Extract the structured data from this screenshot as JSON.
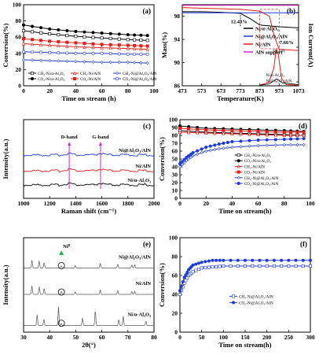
{
  "chart_data": [
    {
      "panel": "(a)",
      "type": "line",
      "xlabel": "Time on stream (h)",
      "ylabel": "Conversion(%)",
      "xlim": [
        0,
        100
      ],
      "ylim": [
        0,
        100
      ],
      "xticks": [
        "0",
        "20",
        "40",
        "60",
        "80",
        "100"
      ],
      "yticks": [
        "0",
        "20",
        "40",
        "60",
        "80",
        "100"
      ],
      "legend": "bottom",
      "series": [
        {
          "name": "CH4-Ni/α-Al2O3",
          "color": "#000000",
          "marker": "square-open",
          "x": [
            0,
            20,
            40,
            60,
            80,
            95
          ],
          "values": [
            68,
            64,
            61,
            59,
            57,
            56
          ]
        },
        {
          "name": "CO2-Ni/α-Al2O3",
          "color": "#000000",
          "marker": "circle",
          "x": [
            0,
            20,
            40,
            60,
            80,
            95
          ],
          "values": [
            75,
            70,
            67,
            65,
            63,
            62
          ]
        },
        {
          "name": "CH4-Ni/AlN",
          "color": "#e0201b",
          "marker": "triangle-open",
          "x": [
            0,
            20,
            40,
            60,
            80,
            95
          ],
          "values": [
            52,
            50,
            48,
            47,
            46,
            45
          ]
        },
        {
          "name": "CO2-Ni/AlN",
          "color": "#e0201b",
          "marker": "square",
          "x": [
            0,
            20,
            40,
            60,
            80,
            95
          ],
          "values": [
            58,
            55,
            53,
            51,
            50,
            49
          ]
        },
        {
          "name": "CH4-Ni@Al2O3/AlN",
          "color": "#1f3bd6",
          "marker": "diamond-open",
          "x": [
            0,
            20,
            40,
            60,
            80,
            95
          ],
          "values": [
            32,
            31,
            30,
            29,
            29,
            28
          ]
        },
        {
          "name": "CO2-Ni@Al2O3/AlN",
          "color": "#1f3bd6",
          "marker": "circle-open",
          "x": [
            0,
            20,
            40,
            60,
            80,
            95
          ],
          "values": [
            42,
            41,
            40,
            40,
            39,
            39
          ]
        }
      ]
    },
    {
      "panel": "(b)",
      "type": "line",
      "xlabel": "Temperature(K)",
      "ylabel": "Mass(%)",
      "ylabel_right": "Ion Current(A)",
      "xlim": [
        473,
        1073
      ],
      "ylim": [
        86,
        100
      ],
      "xticks": [
        "473",
        "573",
        "673",
        "773",
        "873",
        "973",
        "1073"
      ],
      "yticks": [
        "86",
        "90",
        "94",
        "98"
      ],
      "annotations": [
        "12.43%",
        "7.66%",
        "Ni/AlN",
        "Ni/α-Al2O3",
        "Ni@Al2O3/AlN"
      ],
      "series": [
        {
          "name": "Ni/α-Al2O3",
          "color": "#000000",
          "x": [
            473,
            573,
            673,
            773,
            823,
            873,
            973,
            1073
          ],
          "values": [
            98.8,
            98.8,
            98.7,
            98.5,
            97.6,
            96.5,
            96.2,
            96.0
          ]
        },
        {
          "name": "Ni@Al2O3/AlN",
          "color": "#1f3bd6",
          "x": [
            473,
            573,
            673,
            773,
            873,
            973,
            1073
          ],
          "values": [
            98.6,
            98.6,
            98.6,
            98.6,
            98.6,
            98.6,
            98.6
          ]
        },
        {
          "name": "Ni/AlN",
          "color": "#e0201b",
          "x": [
            473,
            573,
            673,
            773,
            873,
            923,
            948,
            973,
            1073
          ],
          "values": [
            99.5,
            99.4,
            99.3,
            99.2,
            98.9,
            98.0,
            94.5,
            92.3,
            92.1
          ]
        },
        {
          "name": "AlN support",
          "color": "#e020c8",
          "x": [
            473,
            573,
            673,
            773,
            873,
            973,
            1073
          ],
          "values": [
            99.9,
            99.9,
            99.9,
            99.9,
            99.9,
            99.9,
            99.9
          ]
        }
      ]
    },
    {
      "panel": "(c)",
      "type": "line",
      "xlabel": "Raman shift (cm-1)",
      "ylabel": "Intensity(a.u.)",
      "xlim": [
        1000,
        2000
      ],
      "xticks": [
        "1000",
        "1200",
        "1400",
        "1600",
        "1800",
        "2000"
      ],
      "annotations": [
        "D-band",
        "G-band"
      ],
      "series": [
        {
          "name": "Ni@Al2O3/AlN",
          "color": "#1f3bd6"
        },
        {
          "name": "Ni/AlN",
          "color": "#e0201b"
        },
        {
          "name": "Ni/α-Al2O3",
          "color": "#000000"
        }
      ]
    },
    {
      "panel": "(d)",
      "type": "line",
      "xlabel": "Time on stream(h)",
      "ylabel": "Conversion(%)",
      "xlim": [
        0,
        100
      ],
      "ylim": [
        0,
        100
      ],
      "xticks": [
        "0",
        "20",
        "40",
        "60",
        "80",
        "100"
      ],
      "yticks": [
        "0",
        "10",
        "20",
        "30",
        "40",
        "50",
        "60",
        "70",
        "80",
        "90",
        "100"
      ],
      "series": [
        {
          "name": "CH4-Ni/α-Al2O3",
          "color": "#000000",
          "marker": "square-open",
          "x": [
            0,
            20,
            40,
            60,
            80,
            95
          ],
          "values": [
            86,
            84,
            83,
            82,
            81,
            80
          ]
        },
        {
          "name": "CO2-Ni/α-Al2O3",
          "color": "#000000",
          "marker": "circle",
          "x": [
            0,
            20,
            40,
            60,
            80,
            95
          ],
          "values": [
            92,
            89,
            88,
            87,
            86,
            85
          ]
        },
        {
          "name": "CH4-Ni/AlN",
          "color": "#e0201b",
          "marker": "triangle-open",
          "x": [
            0,
            20,
            40,
            60,
            80,
            95
          ],
          "values": [
            84,
            83,
            82,
            81,
            80,
            80
          ]
        },
        {
          "name": "CO2-Ni/AlN",
          "color": "#e0201b",
          "marker": "square",
          "x": [
            0,
            20,
            40,
            60,
            80,
            95
          ],
          "values": [
            89,
            87,
            86,
            85,
            84,
            84
          ]
        },
        {
          "name": "CH4-Ni@Al2O3/AlN",
          "color": "#1f3bd6",
          "marker": "diamond-open",
          "x": [
            0,
            5,
            10,
            20,
            30,
            40,
            60,
            80,
            95
          ],
          "values": [
            40,
            48,
            54,
            60,
            63,
            65,
            67,
            68,
            68
          ]
        },
        {
          "name": "CO2-Ni@Al2O3/AlN",
          "color": "#1f3bd6",
          "marker": "circle",
          "x": [
            0,
            5,
            10,
            20,
            30,
            40,
            60,
            80,
            95
          ],
          "values": [
            44,
            52,
            58,
            65,
            69,
            72,
            74,
            75,
            76
          ]
        }
      ]
    },
    {
      "panel": "(e)",
      "type": "line",
      "xlabel": "2θ(°)",
      "ylabel": "Intensity(a.u.)",
      "xlim": [
        30,
        80
      ],
      "xticks": [
        "30",
        "40",
        "50",
        "60",
        "70",
        "80"
      ],
      "annotations": [
        "Ni0"
      ],
      "series": [
        {
          "name": "Ni@Al2O3/AlN",
          "color": "#555555"
        },
        {
          "name": "Ni/AlN",
          "color": "#555555"
        },
        {
          "name": "Ni/α-Al2O3",
          "color": "#555555"
        }
      ]
    },
    {
      "panel": "(f)",
      "type": "line",
      "xlabel": "Time on stream(h)",
      "ylabel": "Conversion(%)",
      "xlim": [
        0,
        300
      ],
      "ylim": [
        0,
        100
      ],
      "xticks": [
        "0",
        "50",
        "100",
        "150",
        "200",
        "250",
        "300"
      ],
      "yticks": [
        "0",
        "20",
        "40",
        "60",
        "80",
        "100"
      ],
      "series": [
        {
          "name": "CH4-Ni@Al2O3/AlN",
          "color": "#1f3bd6",
          "marker": "square-open",
          "x": [
            0,
            10,
            20,
            30,
            50,
            75,
            100,
            150,
            200,
            250,
            300
          ],
          "values": [
            40,
            52,
            60,
            64,
            68,
            69,
            70,
            70,
            70,
            70,
            70
          ]
        },
        {
          "name": "CO2-Ni@Al2O3/AlN",
          "color": "#1f3bd6",
          "marker": "circle",
          "x": [
            0,
            10,
            20,
            30,
            50,
            75,
            100,
            150,
            200,
            250,
            300
          ],
          "values": [
            44,
            58,
            66,
            71,
            74,
            76,
            76,
            76,
            76,
            76,
            76
          ]
        }
      ]
    }
  ]
}
